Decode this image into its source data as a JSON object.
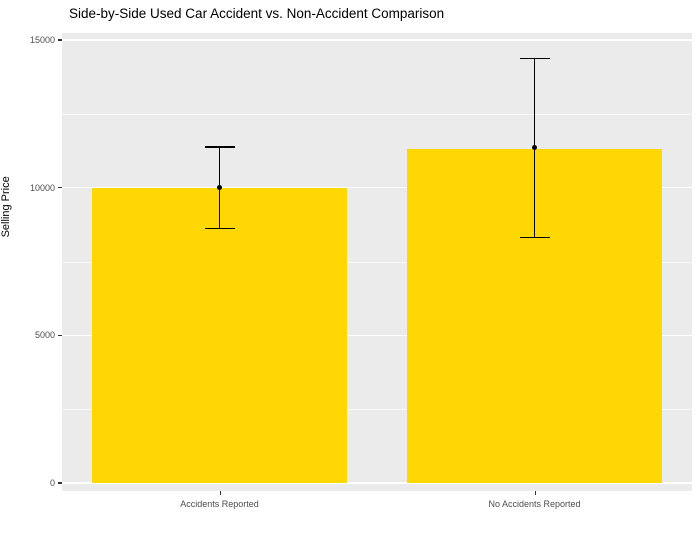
{
  "chart_data": {
    "type": "bar",
    "title": "Side-by-Side Used Car Accident vs. Non-Accident Comparison",
    "xlabel": "",
    "ylabel": "Selling Price",
    "categories": [
      "Accidents Reported",
      "No Accidents Reported"
    ],
    "values": [
      10000,
      11300
    ],
    "error_bars": [
      {
        "low": 8600,
        "high": 11400,
        "point": 10000
      },
      {
        "low": 8300,
        "high": 14400,
        "point": 11350
      }
    ],
    "yticks": [
      0,
      5000,
      10000,
      15000
    ],
    "ytick_labels": [
      "0",
      "5000",
      "10000",
      "15000"
    ],
    "minor_gridlines": [
      2500,
      7500,
      12500
    ],
    "ylim": [
      0,
      15000
    ],
    "legend": "none",
    "grid": "on",
    "colors": {
      "bar_fill": "#FFD702",
      "panel_background": "#EBEBEB",
      "gridline": "#FFFFFF",
      "error_bar": "#000000",
      "tick_label": "#4D4D4D",
      "title": "#000000"
    }
  }
}
